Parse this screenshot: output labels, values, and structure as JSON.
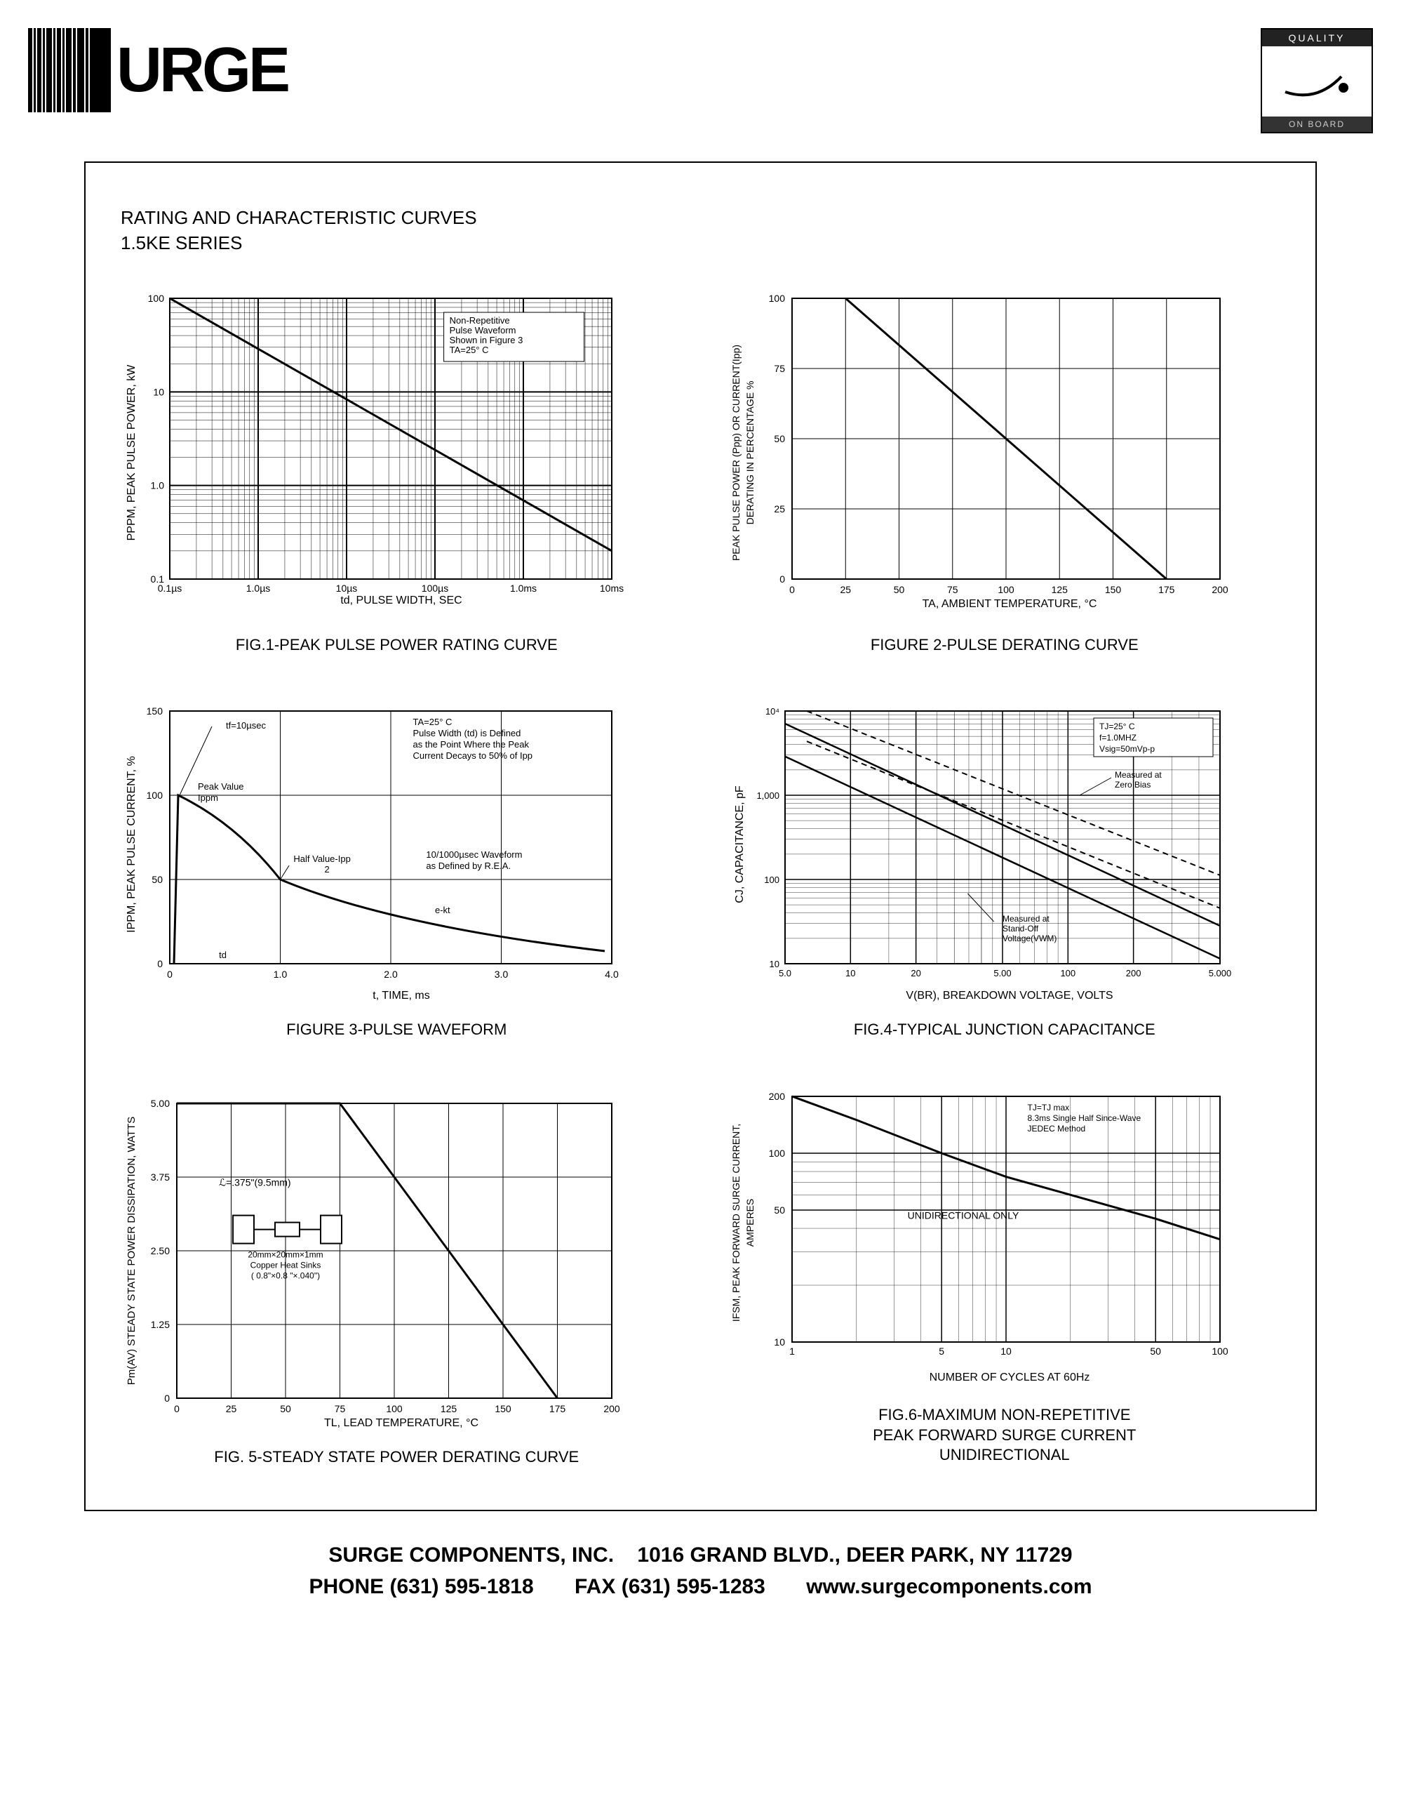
{
  "header": {
    "logo_text": "URGE",
    "badge_top": "QUALITY",
    "badge_bot": "ON BOARD"
  },
  "section_title_line1": "RATING AND CHARACTERISTIC CURVES",
  "section_title_line2": "1.5KE SERIES",
  "footer": {
    "company": "SURGE COMPONENTS, INC.",
    "address": "1016 GRAND BLVD., DEER PARK, NY 11729",
    "phone_label": "PHONE",
    "phone": "(631) 595-1818",
    "fax_label": "FAX",
    "fax": "(631) 595-1283",
    "web": "www.surgecomponents.com"
  },
  "fig1": {
    "caption": "FIG.1-PEAK PULSE POWER RATING CURVE",
    "ylabel": "PPPM, PEAK PULSE POWER, kW",
    "xlabel": "td, PULSE WIDTH, SEC",
    "xticks": [
      "0.1µs",
      "1.0µs",
      "10µs",
      "100µs",
      "1.0ms",
      "10ms"
    ],
    "yticks": [
      "0.1",
      "1.0",
      "10",
      "100"
    ],
    "note1": "Non-Repetitive",
    "note2": "Pulse Waveform",
    "note3": "Shown in Figure 3",
    "note4": "TA=25° C",
    "type": "loglog-line",
    "line_color": "#000000",
    "grid_color": "#000000",
    "data": [
      [
        0,
        100
      ],
      [
        100,
        0.2
      ]
    ]
  },
  "fig2": {
    "caption": "FIGURE 2-PULSE DERATING CURVE",
    "ylabel": "PEAK PULSE POWER (Ppp) OR CURRENT(Ipp)\nDERATING IN PERCENTAGE %",
    "xlabel": "TA, AMBIENT TEMPERATURE, °C",
    "xticks": [
      "0",
      "25",
      "50",
      "75",
      "100",
      "125",
      "150",
      "175",
      "200"
    ],
    "yticks": [
      "0",
      "25",
      "50",
      "75",
      "100"
    ],
    "type": "linear-line",
    "line_color": "#000000",
    "grid_color": "#000000",
    "data": [
      [
        25,
        100
      ],
      [
        175,
        0
      ]
    ]
  },
  "fig3": {
    "caption": "FIGURE 3-PULSE WAVEFORM",
    "ylabel": "IPPM, PEAK PULSE CURRENT, %",
    "xlabel": "t, TIME, ms",
    "xticks": [
      "0",
      "1.0",
      "2.0",
      "3.0",
      "4.0"
    ],
    "yticks": [
      "0",
      "50",
      "100",
      "150"
    ],
    "note_box1": "TA=25° C\nPulse Width (td) is Defined\nas the Point Where the Peak\nCurrent Decays to 50% of Ipp",
    "note_box2": "10/1000µsec Waveform\nas Defined by R.E.A.",
    "label_tf": "tf=10µsec",
    "label_peak": "Peak Value\nIppm",
    "label_half": "Half Value-Ipp\n2",
    "label_td": "td",
    "label_ekt": "e-kt",
    "type": "waveform",
    "line_color": "#000000",
    "grid_color": "#000000"
  },
  "fig4": {
    "caption": "FIG.4-TYPICAL JUNCTION CAPACITANCE",
    "ylabel": "CJ, CAPACITANCE, pF",
    "xlabel": "V(BR), BREAKDOWN VOLTAGE, VOLTS",
    "xticks": [
      "5.0",
      "10",
      "20",
      "50",
      "100",
      "200",
      "500"
    ],
    "yticks": [
      "10",
      "100",
      "1,000",
      "10⁴"
    ],
    "note_box1": "TJ=25° C\nf=1.0MHZ\nVsig=50mVp-p",
    "label_zero": "Measured at\nZero Bias",
    "label_standoff": "Measured at\nStand-Off\nVoltage(VWM)",
    "type": "loglog-multi",
    "line_color": "#000000",
    "grid_color": "#000000"
  },
  "fig5": {
    "caption": "FIG. 5-STEADY STATE POWER DERATING CURVE",
    "ylabel": "Pm(AV) STEADY STATE POWER DISSIPATION, WATTS",
    "xlabel": "TL, LEAD TEMPERATURE, °C",
    "xticks": [
      "0",
      "25",
      "50",
      "75",
      "100",
      "125",
      "150",
      "175",
      "200"
    ],
    "yticks": [
      "0",
      "1.25",
      "2.50",
      "3.75",
      "5.00"
    ],
    "label_l": "ℒ=.375\"(9.5mm)",
    "label_sinks": "20mm×20mm×1mm\nCopper Heat Sinks\n( 0.8\"×0.8 \"×.040\")",
    "type": "linear-line",
    "line_color": "#000000",
    "grid_color": "#000000",
    "data": [
      [
        0,
        5.0
      ],
      [
        75,
        5.0
      ],
      [
        175,
        0
      ]
    ]
  },
  "fig6": {
    "caption": "FIG.6-MAXIMUM NON-REPETITIVE\nPEAK FORWARD SURGE CURRENT\nUNIDIRECTIONAL",
    "ylabel": "IFSM, PEAK FORWARD SURGE CURRENT,\nAMPERES",
    "xlabel": "NUMBER OF CYCLES AT 60Hz",
    "xticks": [
      "1",
      "5",
      "10",
      "50",
      "100"
    ],
    "yticks": [
      "10",
      "50",
      "100",
      "200"
    ],
    "note_box1": "TJ=TJ max\n8.3ms Single Half Since-Wave\nJEDEC Method",
    "label_uni": "UNIDIRECTIONAL ONLY",
    "type": "loglog-line",
    "line_color": "#000000",
    "grid_color": "#000000"
  },
  "colors": {
    "background": "#ffffff",
    "text": "#000000",
    "border": "#000000"
  }
}
